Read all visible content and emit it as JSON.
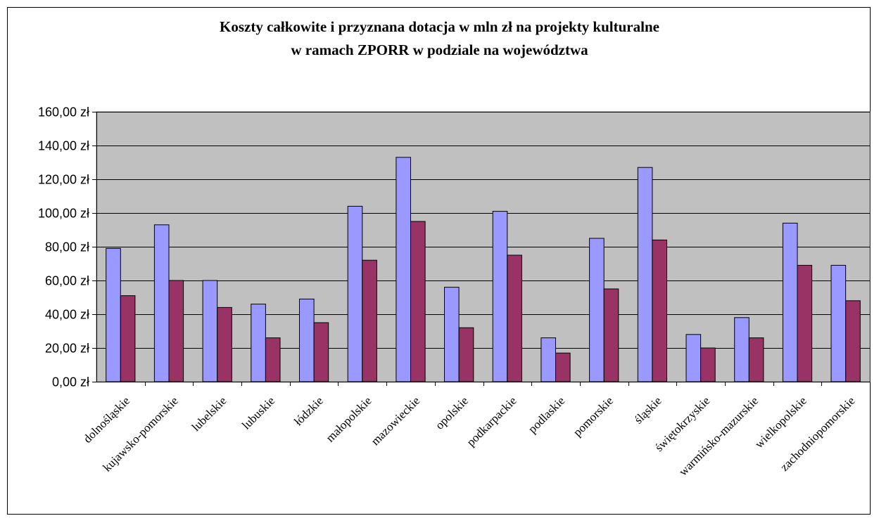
{
  "chart_data": {
    "type": "bar",
    "title": [
      "Koszty całkowite i przyznana dotacja w mln zł na projekty kulturalne",
      "w ramach ZPORR w podziale na województwa"
    ],
    "categories": [
      "dolnośląskie",
      "kujawsko-pomorskie",
      "lubelskie",
      "lubuskie",
      "łódzkie",
      "małopolskie",
      "mazowieckie",
      "opolskie",
      "podkarpackie",
      "podlaskie",
      "pomorskie",
      "śląskie",
      "świętokrzyskie",
      "warmińsko-mazurskie",
      "wielkopolskie",
      "zachodniopomorskie"
    ],
    "series": [
      {
        "values": [
          79,
          93,
          60,
          46,
          49,
          104,
          133,
          56,
          101,
          26,
          85,
          127,
          28,
          38,
          94,
          69
        ]
      },
      {
        "values": [
          51,
          60,
          44,
          26,
          35,
          72,
          95,
          32,
          75,
          17,
          55,
          84,
          20,
          26,
          69,
          48
        ]
      }
    ],
    "series_colors": [
      "#9999ff",
      "#993366"
    ],
    "plot_background": "#c0c0c0",
    "ylim": [
      0,
      160
    ],
    "yticks": [
      "0,00 zł",
      "20,00 zł",
      "40,00 zł",
      "60,00 zł",
      "80,00 zł",
      "100,00 zł",
      "120,00 zł",
      "140,00 zł",
      "160,00 zł"
    ],
    "grid": true,
    "legend": "none"
  }
}
